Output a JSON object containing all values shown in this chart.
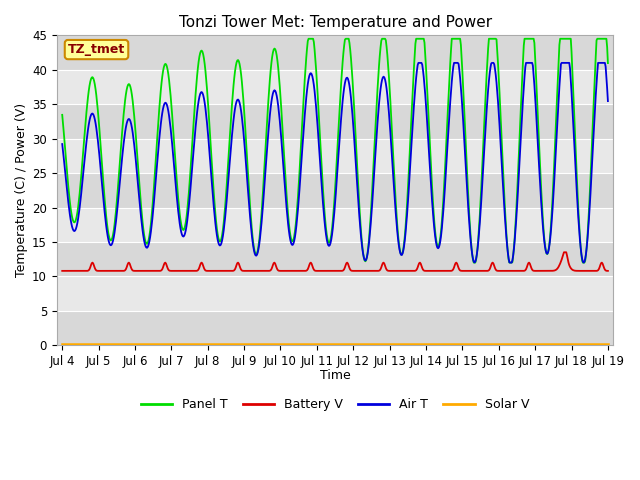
{
  "title": "Tonzi Tower Met: Temperature and Power",
  "xlabel": "Time",
  "ylabel": "Temperature (C) / Power (V)",
  "ylim": [
    0,
    45
  ],
  "yticks": [
    0,
    5,
    10,
    15,
    20,
    25,
    30,
    35,
    40,
    45
  ],
  "annotation_text": "TZ_tmet",
  "annotation_bg": "#ffff99",
  "annotation_border": "#cc8800",
  "annotation_text_color": "#880000",
  "x_tick_labels": [
    "Jul 4",
    "Jul 5",
    "Jul 6",
    "Jul 7",
    "Jul 8",
    "Jul 9",
    "Jul 10",
    "Jul 11",
    "Jul 12",
    "Jul 13",
    "Jul 14",
    "Jul 15",
    "Jul 16",
    "Jul 17",
    "Jul 18",
    "Jul 19"
  ],
  "panel_t_color": "#00dd00",
  "battery_v_color": "#dd0000",
  "air_t_color": "#0000dd",
  "solar_v_color": "#ffaa00",
  "band_light": "#e8e8e8",
  "band_dark": "#d8d8d8",
  "legend_entries": [
    "Panel T",
    "Battery V",
    "Air T",
    "Solar V"
  ],
  "title_fontsize": 11,
  "label_fontsize": 9,
  "tick_fontsize": 8.5
}
